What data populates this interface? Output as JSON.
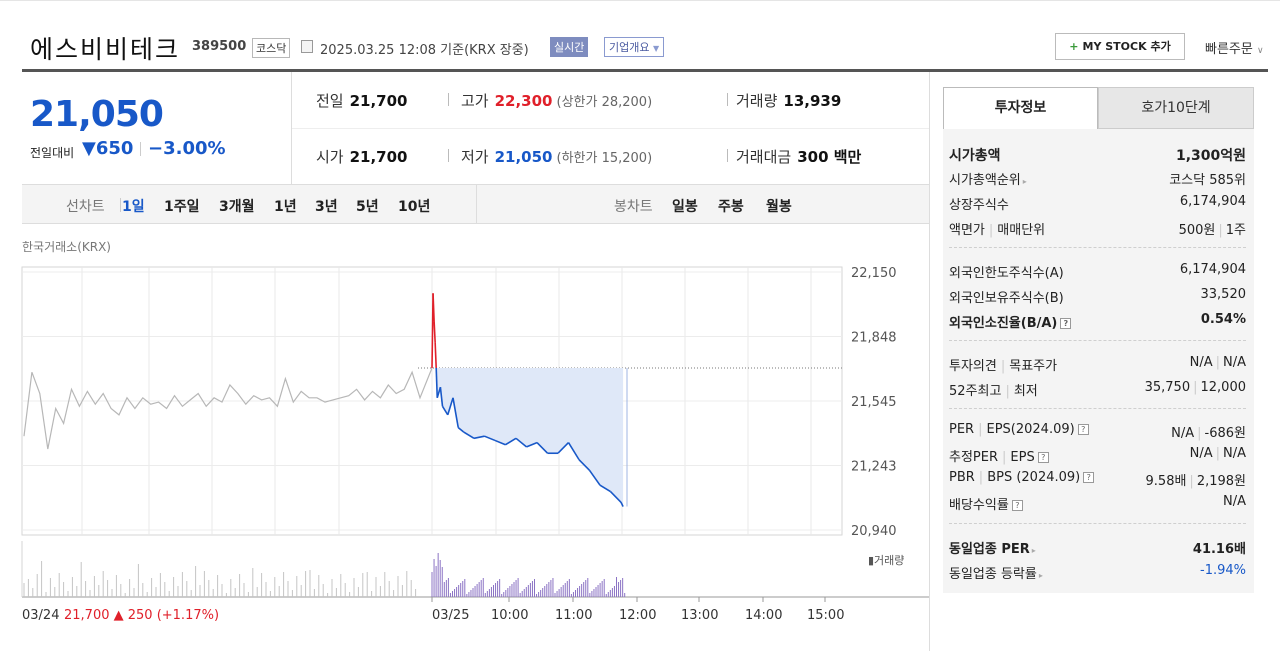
{
  "stock": {
    "name": "에스비비테크",
    "code": "389500",
    "market": "코스닥",
    "datetime": "2025.03.25 12:08 기준(KRX 장중)",
    "realtime_label": "실시간",
    "overview_label": "기업개요",
    "mystock_label": "MY STOCK 추가",
    "quick_order_label": "빠른주문"
  },
  "quote": {
    "price": "21,050",
    "prev_label": "전일대비",
    "change_symbol": "▼",
    "change": "650",
    "change_pct": "−3.00%",
    "prev_close_label": "전일",
    "prev_close": "21,700",
    "high_label": "고가",
    "high": "22,300",
    "upper_limit": "(상한가 28,200)",
    "volume_label": "거래량",
    "volume": "13,939",
    "open_label": "시가",
    "open": "21,700",
    "low_label": "저가",
    "low": "21,050",
    "lower_limit": "(하한가 15,200)",
    "amount_label": "거래대금",
    "amount": "300 백만"
  },
  "period_bar": {
    "line_label": "선차트",
    "line_options": [
      "1일",
      "1주일",
      "3개월",
      "1년",
      "3년",
      "5년",
      "10년"
    ],
    "selected": "1일",
    "candle_label": "봉차트",
    "candle_options": [
      "일봉",
      "주봉",
      "월봉"
    ]
  },
  "chart_source": "한국거래소(KRX)",
  "colors": {
    "up": "#e0202a",
    "down": "#1858c8",
    "prev_day_line": "#b7b7b7",
    "volume_today": "#8b73c4"
  },
  "chart_data": {
    "type": "line",
    "y_ticks": [
      "22,150",
      "21,848",
      "21,545",
      "21,243",
      "20,940"
    ],
    "ylim": [
      20940,
      22150
    ],
    "x_ticks": [
      "03/25",
      "10:00",
      "11:00",
      "12:00",
      "13:00",
      "14:00",
      "15:00"
    ],
    "prev_close": 21700,
    "prev_day_series": [
      21380,
      21680,
      21580,
      21320,
      21510,
      21440,
      21600,
      21520,
      21590,
      21530,
      21580,
      21510,
      21480,
      21560,
      21510,
      21560,
      21530,
      21540,
      21510,
      21570,
      21520,
      21550,
      21580,
      21520,
      21560,
      21540,
      21620,
      21580,
      21530,
      21570,
      21550,
      21560,
      21520,
      21650,
      21540,
      21590,
      21560,
      21560,
      21540,
      21550,
      21560,
      21570,
      21600,
      21550,
      21590,
      21560,
      21620,
      21580,
      21600,
      21680,
      21560
    ],
    "today_series": [
      {
        "t": "09:00",
        "v": 21700
      },
      {
        "t": "09:01",
        "v": 22050
      },
      {
        "t": "09:02",
        "v": 21920
      },
      {
        "t": "09:03",
        "v": 21820
      },
      {
        "t": "09:04",
        "v": 21700
      },
      {
        "t": "09:05",
        "v": 21560
      },
      {
        "t": "09:08",
        "v": 21610
      },
      {
        "t": "09:10",
        "v": 21520
      },
      {
        "t": "09:15",
        "v": 21480
      },
      {
        "t": "09:20",
        "v": 21560
      },
      {
        "t": "09:25",
        "v": 21420
      },
      {
        "t": "09:30",
        "v": 21400
      },
      {
        "t": "09:40",
        "v": 21370
      },
      {
        "t": "09:50",
        "v": 21380
      },
      {
        "t": "10:00",
        "v": 21360
      },
      {
        "t": "10:10",
        "v": 21340
      },
      {
        "t": "10:20",
        "v": 21370
      },
      {
        "t": "10:30",
        "v": 21330
      },
      {
        "t": "10:40",
        "v": 21350
      },
      {
        "t": "10:50",
        "v": 21300
      },
      {
        "t": "11:00",
        "v": 21300
      },
      {
        "t": "11:10",
        "v": 21350
      },
      {
        "t": "11:20",
        "v": 21270
      },
      {
        "t": "11:30",
        "v": 21220
      },
      {
        "t": "11:40",
        "v": 21150
      },
      {
        "t": "11:50",
        "v": 21120
      },
      {
        "t": "12:00",
        "v": 21070
      },
      {
        "t": "12:02",
        "v": 21050
      }
    ],
    "volume_label": "거래량",
    "prev_summary": {
      "date": "03/24",
      "close": "21,700",
      "arrow": "▲",
      "change": "250",
      "pct": "(+1.17%)"
    }
  },
  "tabs": {
    "invest": "투자정보",
    "orderbook": "호가10단계"
  },
  "invest_info": {
    "market_cap": {
      "label": "시가총액",
      "value": "1,300억원"
    },
    "market_cap_rank": {
      "label": "시가총액순위",
      "value": "코스닥 585위"
    },
    "shares": {
      "label": "상장주식수",
      "value": "6,174,904"
    },
    "par_unit": {
      "label1": "액면가",
      "label2": "매매단위",
      "value1": "500원",
      "value2": "1주"
    },
    "foreign_limit": {
      "label": "외국인한도주식수(A)",
      "value": "6,174,904"
    },
    "foreign_hold": {
      "label": "외국인보유주식수(B)",
      "value": "33,520"
    },
    "foreign_ratio": {
      "label": "외국인소진율(B/A)",
      "value": "0.54%"
    },
    "opinion": {
      "label1": "투자의견",
      "label2": "목표주가",
      "value1": "N/A",
      "value2": "N/A"
    },
    "w52": {
      "label1": "52주최고",
      "label2": "최저",
      "value1": "35,750",
      "value2": "12,000"
    },
    "per_eps": {
      "label1": "PER",
      "label2": "EPS(2024.09)",
      "value1": "N/A",
      "value2": "-686원"
    },
    "est": {
      "label1": "추정PER",
      "label2": "EPS",
      "value1": "N/A",
      "value2": "N/A"
    },
    "pbr_bps": {
      "label1": "PBR",
      "label2": "BPS (2024.09)",
      "value1": "9.58배",
      "value2": "2,198원"
    },
    "dividend": {
      "label": "배당수익률",
      "value": "N/A"
    },
    "sector_per": {
      "label": "동일업종 PER",
      "value": "41.16배"
    },
    "sector_change": {
      "label": "동일업종 등락률",
      "value": "-1.94%"
    }
  }
}
